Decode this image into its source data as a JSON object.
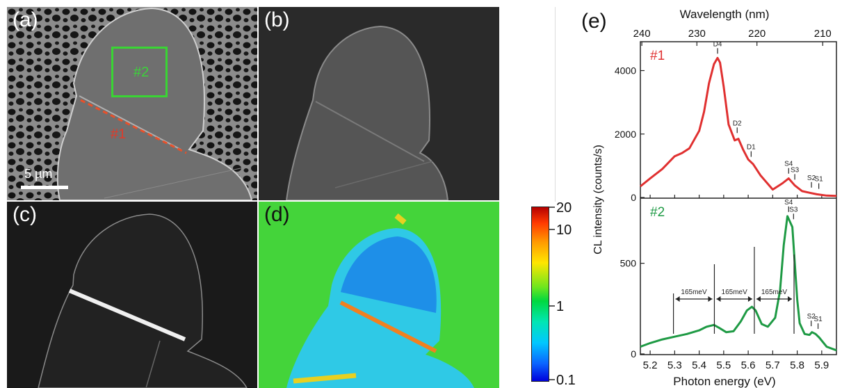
{
  "panels": {
    "a": {
      "label": "(a)",
      "box_label_green": "#2",
      "line_label_red": "#1",
      "scalebar_text": "5 µm"
    },
    "b": {
      "label": "(b)"
    },
    "c": {
      "label": "(c)"
    },
    "d": {
      "label": "(d)"
    },
    "e": {
      "label": "(e)"
    }
  },
  "colorbar": {
    "ticks": [
      "20",
      "10",
      "1",
      "0.1"
    ],
    "values": [
      20,
      10,
      1,
      0.1
    ],
    "scale": "log",
    "range": [
      0.1,
      20
    ]
  },
  "colors": {
    "red_series": "#e03030",
    "green_series": "#1e9a44",
    "box_green": "#39d533",
    "dash_red": "#e8502a",
    "label_red": "#e03a2a",
    "label_green": "#3cd23a"
  },
  "chart_data": {
    "type": "line",
    "xlabel": "Photon energy (eV)",
    "ylabel": "CL intensity (counts/s)",
    "top_xlabel": "Wavelength (nm)",
    "xlim": [
      5.16,
      5.96
    ],
    "xticks": [
      "5.2",
      "5.3",
      "5.4",
      "5.5",
      "5.6",
      "5.7",
      "5.8",
      "5.9"
    ],
    "xtick_values": [
      5.2,
      5.3,
      5.4,
      5.5,
      5.6,
      5.7,
      5.8,
      5.9
    ],
    "top_xticks": [
      "240",
      "230",
      "220",
      "210"
    ],
    "top_xtick_values": [
      240,
      230,
      220,
      210
    ],
    "subplots": [
      {
        "name": "#1",
        "ylim": [
          0,
          4800
        ],
        "yticks": [
          "0",
          "2000",
          "4000"
        ],
        "ytick_values": [
          0,
          2000,
          4000
        ],
        "x": [
          5.16,
          5.2,
          5.25,
          5.3,
          5.33,
          5.36,
          5.4,
          5.42,
          5.44,
          5.46,
          5.475,
          5.485,
          5.5,
          5.52,
          5.545,
          5.56,
          5.58,
          5.6,
          5.62,
          5.65,
          5.7,
          5.74,
          5.765,
          5.79,
          5.82,
          5.85,
          5.88,
          5.92,
          5.96
        ],
        "y": [
          350,
          600,
          900,
          1300,
          1400,
          1550,
          2100,
          2700,
          3600,
          4200,
          4400,
          4250,
          3500,
          2300,
          1800,
          1850,
          1500,
          1200,
          1050,
          700,
          250,
          450,
          600,
          380,
          200,
          150,
          100,
          60,
          50
        ],
        "peaks": [
          {
            "label": "D4",
            "x": 5.475,
            "y": 4400
          },
          {
            "label": "D2",
            "x": 5.555,
            "y": 1900
          },
          {
            "label": "D1",
            "x": 5.612,
            "y": 1150
          },
          {
            "label": "S4",
            "x": 5.765,
            "y": 620
          },
          {
            "label": "S3",
            "x": 5.79,
            "y": 430
          },
          {
            "label": "S2",
            "x": 5.858,
            "y": 180
          },
          {
            "label": "S1",
            "x": 5.888,
            "y": 140
          }
        ]
      },
      {
        "name": "#2",
        "ylim": [
          0,
          840
        ],
        "yticks": [
          "0",
          "500"
        ],
        "ytick_values": [
          0,
          500
        ],
        "x": [
          5.16,
          5.2,
          5.25,
          5.3,
          5.35,
          5.4,
          5.43,
          5.46,
          5.48,
          5.51,
          5.54,
          5.57,
          5.595,
          5.615,
          5.63,
          5.655,
          5.68,
          5.71,
          5.73,
          5.745,
          5.76,
          5.78,
          5.79,
          5.8,
          5.81,
          5.83,
          5.85,
          5.86,
          5.875,
          5.89,
          5.92,
          5.96
        ],
        "y": [
          40,
          60,
          80,
          95,
          110,
          130,
          150,
          160,
          145,
          120,
          125,
          180,
          240,
          260,
          240,
          165,
          150,
          200,
          350,
          600,
          760,
          700,
          500,
          300,
          170,
          110,
          105,
          120,
          110,
          90,
          40,
          20
        ],
        "peaks": [
          {
            "label": "S4",
            "x": 5.765,
            "y": 760
          },
          {
            "label": "S3",
            "x": 5.785,
            "y": 720
          },
          {
            "label": "S2",
            "x": 5.857,
            "y": 130
          },
          {
            "label": "S1",
            "x": 5.885,
            "y": 115
          }
        ],
        "annotations": {
          "spacing_label": "165meV",
          "marker_x": [
            5.295,
            5.462,
            5.625,
            5.787
          ]
        }
      }
    ]
  }
}
